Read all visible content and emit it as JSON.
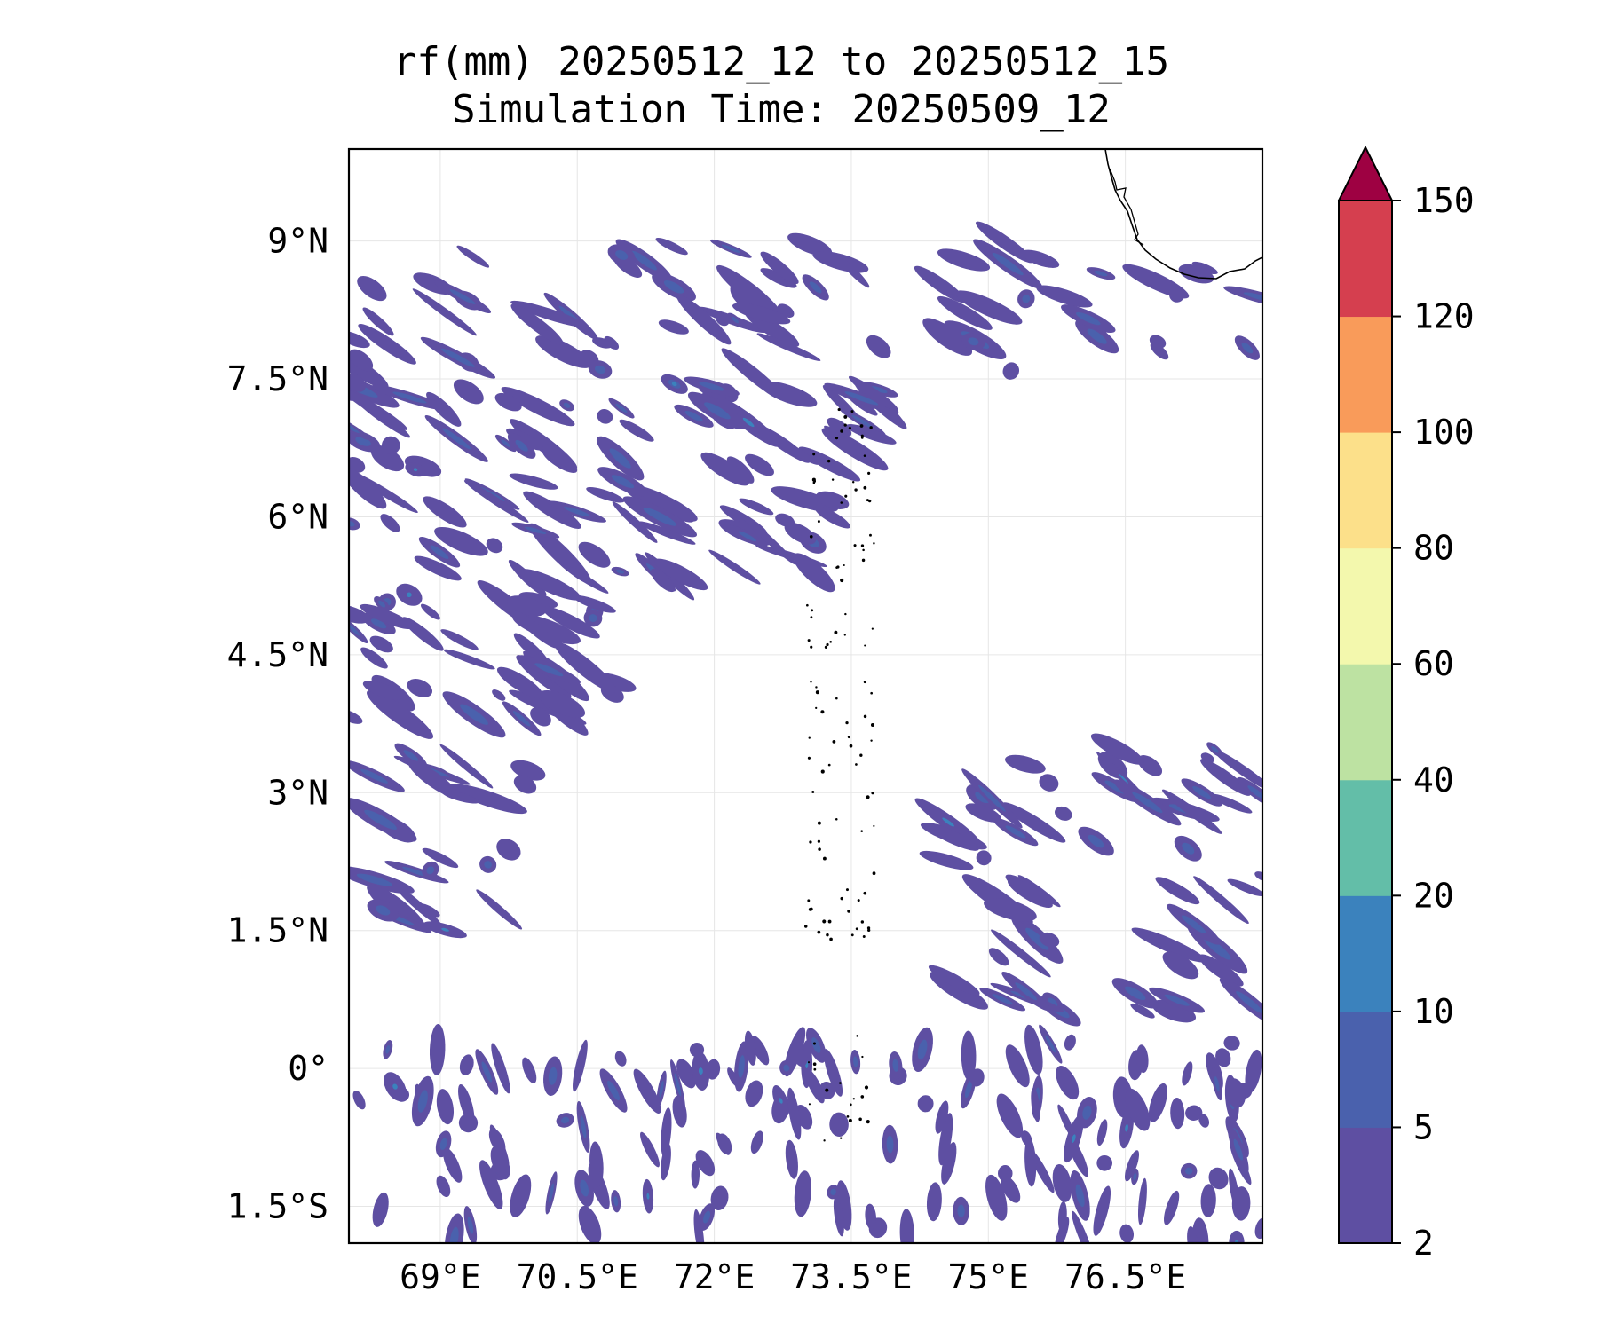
{
  "title": "rf(mm) 20250512_12 to 20250512_15",
  "subtitle": "Simulation Time: 20250509_12",
  "map": {
    "lon_range": [
      68.0,
      78.0
    ],
    "lat_range": [
      -1.9,
      10.0
    ],
    "grid": true,
    "lat_ticks": [
      {
        "value": 9.0,
        "label": "9°N"
      },
      {
        "value": 7.5,
        "label": "7.5°N"
      },
      {
        "value": 6.0,
        "label": "6°N"
      },
      {
        "value": 4.5,
        "label": "4.5°N"
      },
      {
        "value": 3.0,
        "label": "3°N"
      },
      {
        "value": 1.5,
        "label": "1.5°N"
      },
      {
        "value": 0.0,
        "label": "0°"
      },
      {
        "value": -1.5,
        "label": "1.5°S"
      }
    ],
    "lon_ticks": [
      {
        "value": 69.0,
        "label": "69°E"
      },
      {
        "value": 70.5,
        "label": "70.5°E"
      },
      {
        "value": 72.0,
        "label": "72°E"
      },
      {
        "value": 73.5,
        "label": "73.5°E"
      },
      {
        "value": 75.0,
        "label": "75°E"
      },
      {
        "value": 76.5,
        "label": "76.5°E"
      }
    ],
    "rain_bands": [
      {
        "lon": [
          68.0,
          78.0
        ],
        "lat": [
          7.5,
          9.0
        ],
        "cell_count": 70
      },
      {
        "lon": [
          68.0,
          74.0
        ],
        "lat": [
          6.5,
          7.5
        ],
        "cell_count": 55
      },
      {
        "lon": [
          68.0,
          73.5
        ],
        "lat": [
          5.3,
          6.5
        ],
        "cell_count": 45
      },
      {
        "lon": [
          68.0,
          71.0
        ],
        "lat": [
          3.8,
          5.3
        ],
        "cell_count": 45
      },
      {
        "lon": [
          68.0,
          70.0
        ],
        "lat": [
          1.5,
          3.5
        ],
        "cell_count": 25
      },
      {
        "lon": [
          74.5,
          78.0
        ],
        "lat": [
          0.5,
          3.5
        ],
        "cell_count": 60
      },
      {
        "lon": [
          68.0,
          78.0
        ],
        "lat": [
          -1.9,
          0.3
        ],
        "cell_count": 160
      }
    ],
    "islands": "Maldives chain along 73.0–73.7°E",
    "coast": "SW India / Sri Lanka coast at top-right"
  },
  "colorbar": {
    "levels": [
      2,
      5,
      10,
      20,
      40,
      60,
      80,
      100,
      120,
      150
    ],
    "colors": [
      "#5e4fa2",
      "#4a61ad",
      "#3b82bd",
      "#63bea8",
      "#bde2a2",
      "#f3f8ad",
      "#fce08a",
      "#f99b5a",
      "#d53f4f"
    ],
    "extend_color": "#9e0142",
    "extend": "max"
  }
}
